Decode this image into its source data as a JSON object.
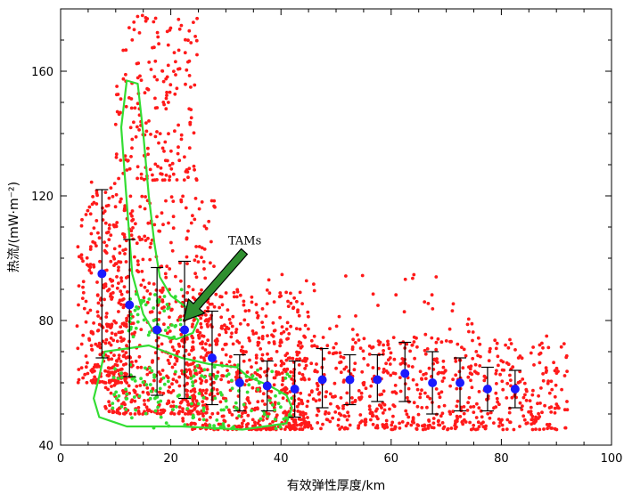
{
  "chart_data": {
    "type": "scatter",
    "xlabel": "有效弹性厚度/km",
    "ylabel": "热流/(mW·m⁻²)",
    "xlim": [
      0,
      100
    ],
    "ylim": [
      40,
      180
    ],
    "xticks": [
      0,
      20,
      40,
      60,
      80,
      100
    ],
    "yticks": [
      40,
      80,
      120,
      160
    ],
    "grid": false,
    "colors": {
      "scatter": "#ff1a1a",
      "tam_points": "#33dd33",
      "contour": "#33dd33",
      "mean": "#1a1aff",
      "errorbar": "#000000",
      "arrow_fill": "#2f8f2f"
    },
    "annotation": {
      "text": "TAMs",
      "x": 22,
      "y": 77
    },
    "binned_means": [
      {
        "x": 7.5,
        "y": 95,
        "lo": 68,
        "hi": 122
      },
      {
        "x": 12.5,
        "y": 85,
        "lo": 62,
        "hi": 106
      },
      {
        "x": 17.5,
        "y": 77,
        "lo": 56,
        "hi": 97
      },
      {
        "x": 22.5,
        "y": 77,
        "lo": 55,
        "hi": 99
      },
      {
        "x": 27.5,
        "y": 68,
        "lo": 53,
        "hi": 83
      },
      {
        "x": 32.5,
        "y": 60,
        "lo": 51,
        "hi": 69
      },
      {
        "x": 37.5,
        "y": 59,
        "lo": 51,
        "hi": 67
      },
      {
        "x": 42.5,
        "y": 58,
        "lo": 49,
        "hi": 67
      },
      {
        "x": 47.5,
        "y": 61,
        "lo": 52,
        "hi": 71
      },
      {
        "x": 52.5,
        "y": 61,
        "lo": 53,
        "hi": 69
      },
      {
        "x": 57.5,
        "y": 61,
        "lo": 54,
        "hi": 69
      },
      {
        "x": 62.5,
        "y": 63,
        "lo": 54,
        "hi": 73
      },
      {
        "x": 67.5,
        "y": 60,
        "lo": 50,
        "hi": 70
      },
      {
        "x": 72.5,
        "y": 60,
        "lo": 51,
        "hi": 68
      },
      {
        "x": 77.5,
        "y": 58,
        "lo": 51,
        "hi": 65
      },
      {
        "x": 82.5,
        "y": 58,
        "lo": 52,
        "hi": 64
      }
    ],
    "tam_contours": [
      [
        [
          14,
          156
        ],
        [
          15,
          140
        ],
        [
          16,
          120
        ],
        [
          17,
          105
        ],
        [
          18,
          94
        ],
        [
          20,
          88
        ],
        [
          23,
          84
        ],
        [
          25,
          80
        ],
        [
          24,
          76
        ],
        [
          21,
          74
        ],
        [
          17,
          76
        ],
        [
          15,
          82
        ],
        [
          13,
          95
        ],
        [
          12,
          118
        ],
        [
          11,
          142
        ],
        [
          12,
          157
        ]
      ],
      [
        [
          8,
          70
        ],
        [
          16,
          72
        ],
        [
          22,
          68
        ],
        [
          27,
          66
        ],
        [
          32,
          65
        ],
        [
          34,
          62
        ],
        [
          38,
          59
        ],
        [
          41,
          56
        ],
        [
          42,
          52
        ],
        [
          41,
          47
        ],
        [
          33,
          45
        ],
        [
          22,
          46
        ],
        [
          12,
          46
        ],
        [
          7,
          49
        ],
        [
          6,
          55
        ],
        [
          7,
          62
        ]
      ]
    ],
    "scatter_regions": [
      {
        "n": 260,
        "x": [
          3,
          12
        ],
        "y": [
          60,
          125
        ]
      },
      {
        "n": 200,
        "x": [
          10,
          25
        ],
        "y": [
          125,
          178
        ]
      },
      {
        "n": 520,
        "x": [
          8,
          28
        ],
        "y": [
          50,
          120
        ]
      },
      {
        "n": 500,
        "x": [
          22,
          45
        ],
        "y": [
          45,
          90
        ]
      },
      {
        "n": 650,
        "x": [
          40,
          92
        ],
        "y": [
          45,
          75
        ]
      },
      {
        "n": 120,
        "x": [
          25,
          75
        ],
        "y": [
          60,
          95
        ]
      }
    ],
    "tam_scatter_regions": [
      {
        "n": 150,
        "x": [
          8,
          42
        ],
        "y": [
          45,
          66
        ]
      },
      {
        "n": 50,
        "x": [
          12,
          22
        ],
        "y": [
          74,
          90
        ]
      }
    ]
  }
}
